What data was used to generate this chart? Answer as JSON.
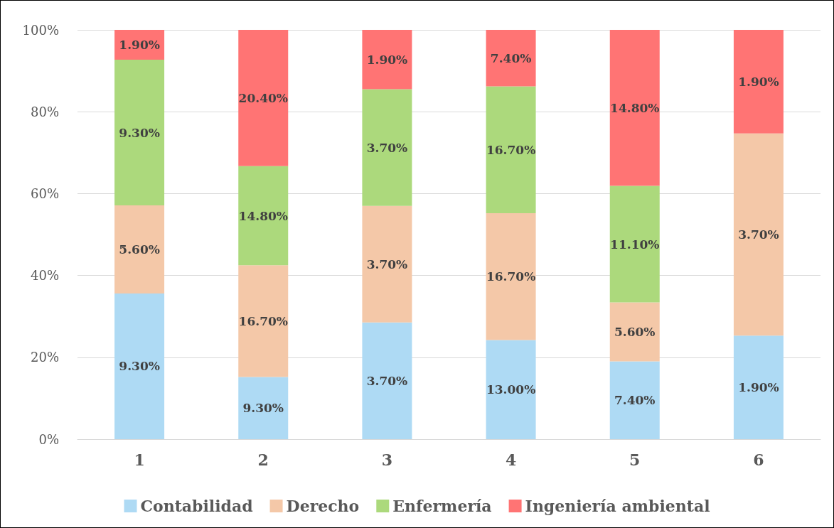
{
  "chart_data": {
    "type": "bar",
    "stacked": true,
    "categories": [
      "1",
      "2",
      "3",
      "4",
      "5",
      "6"
    ],
    "series": [
      {
        "name": "Contabilidad",
        "color": "#aedaf4",
        "values": [
          35.6,
          15.2,
          28.5,
          24.2,
          19.0,
          25.3
        ]
      },
      {
        "name": "Derecho",
        "color": "#f4c8a8",
        "values": [
          21.5,
          27.3,
          28.5,
          31.0,
          14.4,
          49.4
        ]
      },
      {
        "name": "Enfermería",
        "color": "#acd97c",
        "values": [
          35.6,
          24.2,
          28.5,
          31.0,
          28.5,
          null
        ]
      },
      {
        "name": "Ingeniería ambiental",
        "color": "#ff7474",
        "values": [
          7.3,
          33.3,
          14.5,
          13.8,
          38.1,
          25.3
        ]
      }
    ],
    "annotations": [
      "9.30%",
      "5.60%",
      "9.30%",
      "1.90%",
      "9.30%",
      "16.70%",
      "14.80%",
      "20.40%",
      "3.70%",
      "3.70%",
      "3.70%",
      "1.90%",
      "13.00%",
      "16.70%",
      "16.70%",
      "7.40%",
      "7.40%",
      "5.60%",
      "11.10%",
      "14.80%",
      "1.90%",
      "3.70%",
      "1.90%"
    ],
    "ylim": [
      0,
      100
    ],
    "yticks": [
      {
        "value": 0,
        "label": "0%"
      },
      {
        "value": 20,
        "label": "20%"
      },
      {
        "value": 40,
        "label": "40%"
      },
      {
        "value": 60,
        "label": "60%"
      },
      {
        "value": 80,
        "label": "80%"
      },
      {
        "value": 100,
        "label": "100%"
      }
    ],
    "grid": "y",
    "legend": "bottom"
  }
}
